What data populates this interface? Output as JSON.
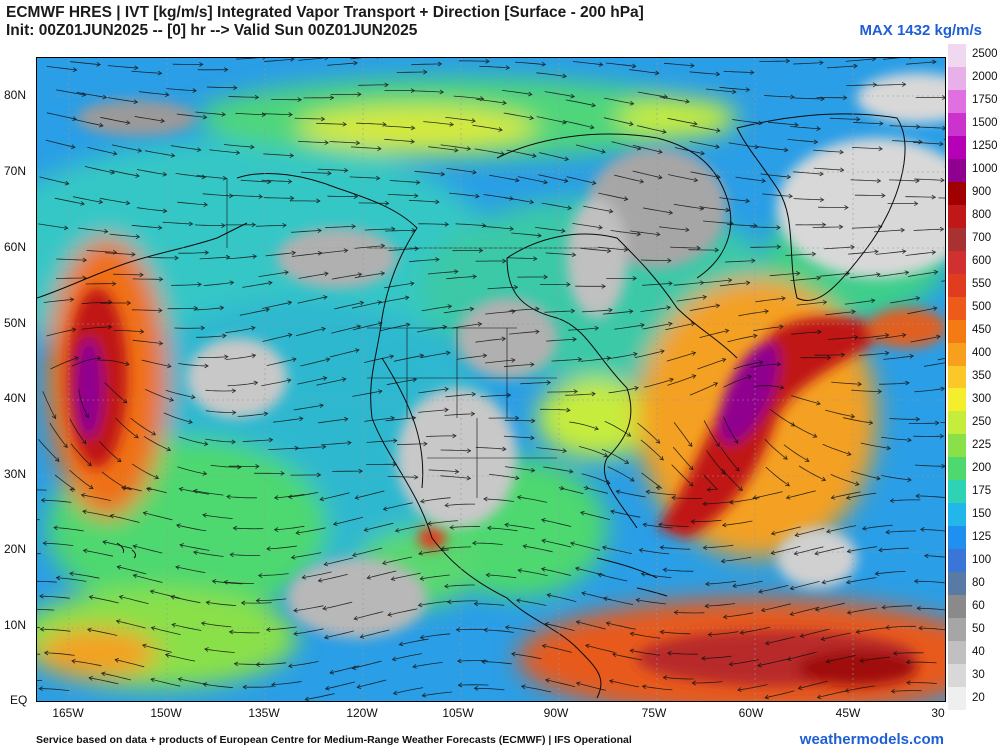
{
  "header": {
    "title_line1": "ECMWF HRES | IVT [kg/m/s] Integrated Vapor Transport + Direction [Surface - 200 hPa]",
    "title_line2": "Init: 00Z01JUN2025 -- [0] hr --> Valid Sun 00Z01JUN2025",
    "max_label": "MAX 1432 kg/m/s"
  },
  "map": {
    "lat_labels": [
      "80N",
      "70N",
      "60N",
      "50N",
      "40N",
      "30N",
      "20N",
      "10N",
      "EQ"
    ],
    "lon_labels": [
      "165W",
      "150W",
      "135W",
      "120W",
      "105W",
      "90W",
      "75W",
      "60W",
      "45W",
      "30"
    ]
  },
  "colorbar": {
    "labels": [
      "2500",
      "2000",
      "1750",
      "1500",
      "1250",
      "1000",
      "900",
      "800",
      "700",
      "600",
      "550",
      "500",
      "450",
      "400",
      "350",
      "300",
      "250",
      "225",
      "200",
      "175",
      "150",
      "125",
      "100",
      "80",
      "60",
      "50",
      "40",
      "30",
      "20"
    ],
    "colors": [
      "#f0d8f0",
      "#e8b0e8",
      "#e070e0",
      "#cc33cc",
      "#b500b5",
      "#8f008f",
      "#a00000",
      "#c01818",
      "#a83232",
      "#d03030",
      "#e03c20",
      "#ee5a1a",
      "#f47a14",
      "#f8a01e",
      "#fcc828",
      "#f4ee2c",
      "#c6ec3c",
      "#8ae048",
      "#4ed870",
      "#2ed2b4",
      "#22b6ea",
      "#2090f0",
      "#3a76d8",
      "#5a7aa6",
      "#8a8a8a",
      "#a6a6a6",
      "#c0c0c0",
      "#d8d8d8",
      "#efefef"
    ]
  },
  "footer": {
    "credit": "Service based on data + products of European Centre for Medium-Range Weather Forecasts (ECMWF) | IFS Operational",
    "brand": "weathermodels.com"
  }
}
